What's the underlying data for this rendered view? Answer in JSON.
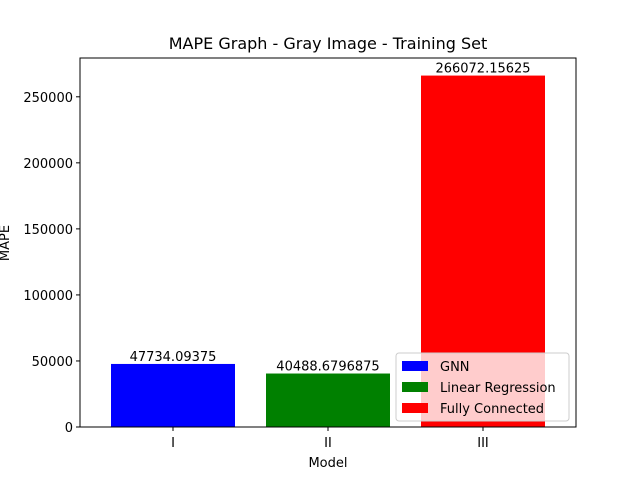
{
  "chart_data": {
    "type": "bar",
    "title": "MAPE Graph - Gray Image - Training Set",
    "xlabel": "Model",
    "ylabel": "MAPE",
    "categories": [
      "I",
      "II",
      "III"
    ],
    "values": [
      47734.09375,
      40488.6796875,
      266072.15625
    ],
    "value_labels": [
      "47734.09375",
      "40488.6796875",
      "266072.15625"
    ],
    "series_names": [
      "GNN",
      "Linear Regression",
      "Fully Connected"
    ],
    "colors": [
      "#0000ff",
      "#008000",
      "#ff0000"
    ],
    "ylim": [
      0,
      279376
    ],
    "yticks": [
      0,
      50000,
      100000,
      150000,
      200000,
      250000
    ],
    "ytick_labels": [
      "0",
      "50000",
      "100000",
      "150000",
      "200000",
      "250000"
    ],
    "grid": false,
    "legend_position": "lower-right"
  }
}
